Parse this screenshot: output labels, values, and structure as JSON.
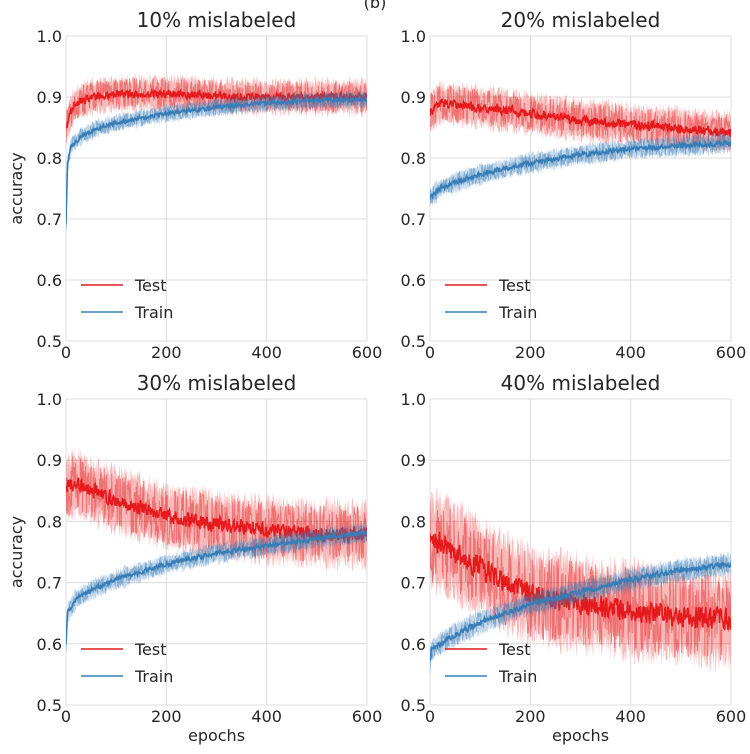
{
  "figure_caption": "(b)",
  "chart_data": [
    {
      "type": "line",
      "title": "10% mislabeled",
      "xlabel": "",
      "ylabel": "accuracy",
      "xlim": [
        0,
        600
      ],
      "ylim": [
        0.5,
        1.0
      ],
      "xticks": [
        "0",
        "200",
        "400",
        "600"
      ],
      "yticks": [
        "0.5",
        "0.6",
        "0.7",
        "0.8",
        "0.9",
        "1.0"
      ],
      "grid": true,
      "legend": "lower-left",
      "series": [
        {
          "name": "Test",
          "color": "#e41a1c",
          "noise": 0.012,
          "points": [
            [
              0,
              0.85
            ],
            [
              10,
              0.875
            ],
            [
              20,
              0.89
            ],
            [
              50,
              0.9
            ],
            [
              100,
              0.905
            ],
            [
              200,
              0.905
            ],
            [
              300,
              0.902
            ],
            [
              400,
              0.9
            ],
            [
              500,
              0.9
            ],
            [
              600,
              0.9
            ]
          ]
        },
        {
          "name": "Train",
          "color": "#377eb8",
          "noise": 0.006,
          "points": [
            [
              0,
              0.69
            ],
            [
              3,
              0.79
            ],
            [
              10,
              0.82
            ],
            [
              30,
              0.835
            ],
            [
              60,
              0.848
            ],
            [
              100,
              0.858
            ],
            [
              200,
              0.873
            ],
            [
              300,
              0.883
            ],
            [
              400,
              0.89
            ],
            [
              500,
              0.894
            ],
            [
              600,
              0.896
            ]
          ]
        }
      ]
    },
    {
      "type": "line",
      "title": "20% mislabeled",
      "xlabel": "",
      "ylabel": "",
      "xlim": [
        0,
        600
      ],
      "ylim": [
        0.5,
        1.0
      ],
      "xticks": [
        "0",
        "200",
        "400",
        "600"
      ],
      "yticks": [
        "0.5",
        "0.6",
        "0.7",
        "0.8",
        "0.9",
        "1.0"
      ],
      "grid": true,
      "legend": "lower-left",
      "series": [
        {
          "name": "Test",
          "color": "#e41a1c",
          "noise": 0.014,
          "points": [
            [
              0,
              0.875
            ],
            [
              20,
              0.89
            ],
            [
              50,
              0.888
            ],
            [
              100,
              0.883
            ],
            [
              200,
              0.873
            ],
            [
              300,
              0.862
            ],
            [
              400,
              0.855
            ],
            [
              500,
              0.848
            ],
            [
              600,
              0.842
            ]
          ]
        },
        {
          "name": "Train",
          "color": "#377eb8",
          "noise": 0.007,
          "points": [
            [
              0,
              0.735
            ],
            [
              20,
              0.75
            ],
            [
              50,
              0.76
            ],
            [
              100,
              0.773
            ],
            [
              200,
              0.792
            ],
            [
              300,
              0.805
            ],
            [
              400,
              0.815
            ],
            [
              500,
              0.82
            ],
            [
              600,
              0.825
            ]
          ]
        }
      ]
    },
    {
      "type": "line",
      "title": "30% mislabeled",
      "xlabel": "epochs",
      "ylabel": "accuracy",
      "xlim": [
        0,
        600
      ],
      "ylim": [
        0.5,
        1.0
      ],
      "xticks": [
        "0",
        "200",
        "400",
        "600"
      ],
      "yticks": [
        "0.5",
        "0.6",
        "0.7",
        "0.8",
        "0.9",
        "1.0"
      ],
      "grid": true,
      "legend": "lower-left",
      "series": [
        {
          "name": "Test",
          "color": "#e41a1c",
          "noise": 0.022,
          "points": [
            [
              0,
              0.855
            ],
            [
              20,
              0.862
            ],
            [
              50,
              0.85
            ],
            [
              100,
              0.835
            ],
            [
              200,
              0.808
            ],
            [
              300,
              0.795
            ],
            [
              400,
              0.785
            ],
            [
              500,
              0.78
            ],
            [
              600,
              0.778
            ]
          ]
        },
        {
          "name": "Train",
          "color": "#377eb8",
          "noise": 0.007,
          "points": [
            [
              0,
              0.6
            ],
            [
              3,
              0.65
            ],
            [
              20,
              0.673
            ],
            [
              50,
              0.688
            ],
            [
              100,
              0.705
            ],
            [
              200,
              0.73
            ],
            [
              300,
              0.748
            ],
            [
              400,
              0.76
            ],
            [
              500,
              0.772
            ],
            [
              600,
              0.782
            ]
          ]
        }
      ]
    },
    {
      "type": "line",
      "title": "40% mislabeled",
      "xlabel": "epochs",
      "ylabel": "",
      "xlim": [
        0,
        600
      ],
      "ylim": [
        0.5,
        1.0
      ],
      "xticks": [
        "0",
        "200",
        "400",
        "600"
      ],
      "yticks": [
        "0.5",
        "0.6",
        "0.7",
        "0.8",
        "0.9",
        "1.0"
      ],
      "grid": true,
      "legend": "lower-left",
      "series": [
        {
          "name": "Test",
          "color": "#e41a1c",
          "noise": 0.032,
          "points": [
            [
              0,
              0.77
            ],
            [
              20,
              0.765
            ],
            [
              50,
              0.75
            ],
            [
              100,
              0.725
            ],
            [
              150,
              0.7
            ],
            [
              200,
              0.68
            ],
            [
              300,
              0.665
            ],
            [
              400,
              0.655
            ],
            [
              500,
              0.645
            ],
            [
              600,
              0.64
            ]
          ]
        },
        {
          "name": "Train",
          "color": "#377eb8",
          "noise": 0.008,
          "points": [
            [
              0,
              0.57
            ],
            [
              3,
              0.59
            ],
            [
              20,
              0.6
            ],
            [
              50,
              0.615
            ],
            [
              100,
              0.635
            ],
            [
              200,
              0.665
            ],
            [
              300,
              0.685
            ],
            [
              400,
              0.705
            ],
            [
              500,
              0.72
            ],
            [
              600,
              0.73
            ]
          ]
        }
      ]
    }
  ]
}
